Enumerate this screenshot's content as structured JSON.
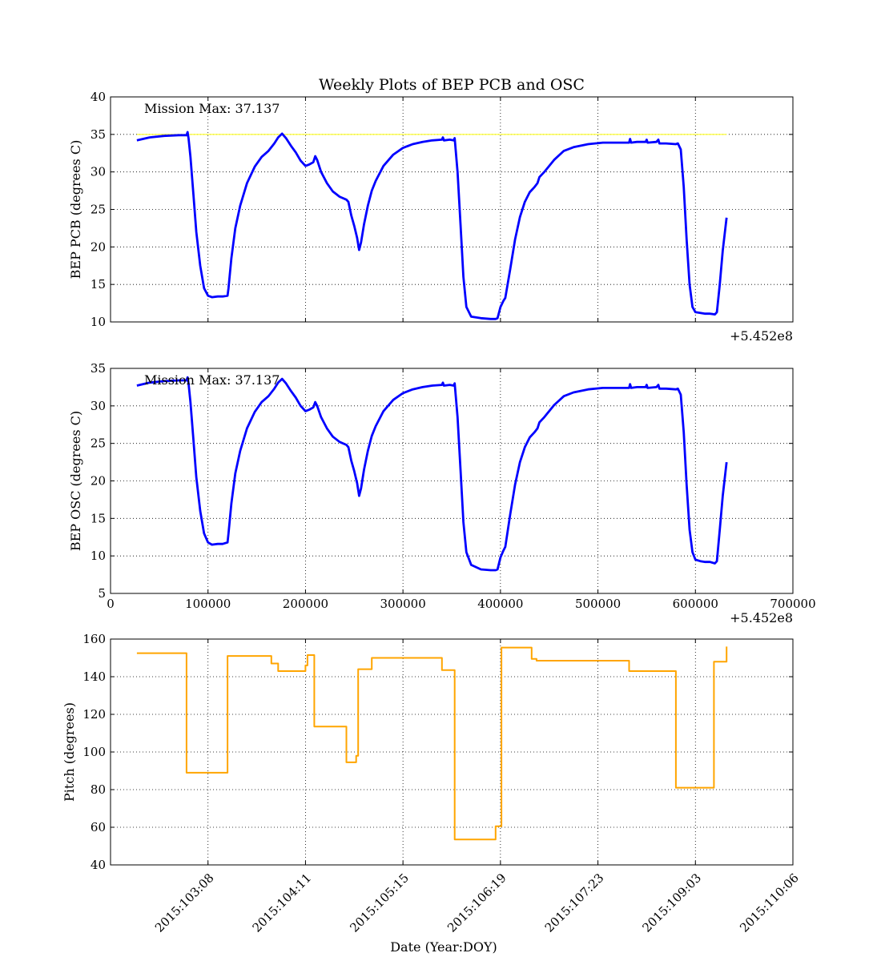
{
  "figure": {
    "title": "Weekly Plots of BEP PCB and OSC",
    "background": "#ffffff"
  },
  "chart_data": [
    {
      "id": "pcb",
      "type": "line",
      "title": "Weekly Plots of BEP PCB and OSC",
      "ylabel": "BEP PCB (degrees C)",
      "xlabel": "",
      "xlim": [
        0,
        700000
      ],
      "ylim": [
        10,
        40
      ],
      "x_offset_label": "+5.452e8",
      "grid": true,
      "yticks": [
        10,
        15,
        20,
        25,
        30,
        35,
        40
      ],
      "xticks": [
        0,
        100000,
        200000,
        300000,
        400000,
        500000,
        600000,
        700000
      ],
      "xtick_labels_shown": false,
      "annotation": "Mission Max: 37.137",
      "reference_line": {
        "y": 35,
        "x": [
          27000,
          632000
        ],
        "color": "#ffff00"
      },
      "series": [
        {
          "color": "#0000ff",
          "x": [
            27000,
            40000,
            55000,
            70000,
            78000,
            79000,
            80000,
            82000,
            85000,
            88000,
            92000,
            96000,
            100000,
            104000,
            110000,
            115000,
            120000,
            121000,
            124000,
            128000,
            133000,
            140000,
            148000,
            155000,
            162000,
            168000,
            172000,
            176000,
            180000,
            185000,
            190000,
            195000,
            200000,
            204000,
            208000,
            210000,
            212000,
            216000,
            222000,
            228000,
            235000,
            242000,
            244000,
            247000,
            250000,
            253000,
            255000,
            257000,
            260000,
            264000,
            268000,
            272000,
            280000,
            290000,
            300000,
            310000,
            320000,
            330000,
            340000,
            341000,
            342000,
            348000,
            352000,
            353000,
            356000,
            359000,
            362000,
            365000,
            370000,
            380000,
            390000,
            395000,
            397000,
            400000,
            403000,
            405000,
            410000,
            415000,
            420000,
            425000,
            430000,
            435000,
            438000,
            440000,
            445000,
            455000,
            465000,
            475000,
            490000,
            505000,
            520000,
            532000,
            533000,
            534000,
            540000,
            549000,
            550000,
            551000,
            560000,
            562000,
            563000,
            570000,
            580000,
            582000,
            585000,
            588000,
            591000,
            594000,
            597000,
            600000,
            605000,
            610000,
            615000,
            620000,
            622000,
            625000,
            628000,
            632000
          ],
          "y": [
            34.2,
            34.6,
            34.8,
            34.9,
            34.9,
            35.3,
            34.5,
            32.0,
            27.0,
            22.0,
            17.5,
            14.5,
            13.5,
            13.3,
            13.4,
            13.4,
            13.5,
            14.5,
            18.5,
            22.5,
            25.5,
            28.5,
            30.7,
            32.0,
            32.8,
            33.8,
            34.6,
            35.1,
            34.5,
            33.5,
            32.6,
            31.5,
            30.8,
            31.0,
            31.3,
            32.1,
            31.6,
            30.0,
            28.5,
            27.4,
            26.7,
            26.3,
            26.0,
            24.2,
            22.8,
            21.2,
            19.6,
            20.6,
            23.0,
            25.5,
            27.5,
            28.8,
            30.8,
            32.3,
            33.2,
            33.7,
            34.0,
            34.2,
            34.3,
            34.6,
            34.2,
            34.3,
            34.2,
            34.5,
            30.0,
            23.0,
            16.0,
            12.0,
            10.7,
            10.5,
            10.4,
            10.4,
            10.5,
            12.0,
            12.8,
            13.2,
            17.0,
            21.0,
            24.0,
            26.0,
            27.3,
            28.0,
            28.5,
            29.3,
            30.0,
            31.6,
            32.8,
            33.3,
            33.7,
            33.9,
            33.9,
            33.9,
            34.4,
            33.9,
            34.0,
            34.0,
            34.3,
            33.9,
            34.0,
            34.3,
            33.8,
            33.8,
            33.7,
            33.8,
            33.0,
            28.0,
            21.0,
            15.0,
            12.0,
            11.3,
            11.2,
            11.1,
            11.1,
            11.0,
            11.3,
            15.0,
            19.5,
            23.9
          ]
        }
      ]
    },
    {
      "id": "osc",
      "type": "line",
      "ylabel": "BEP OSC (degrees C)",
      "xlabel": "",
      "xlim": [
        0,
        700000
      ],
      "ylim": [
        5,
        35
      ],
      "x_offset_label": "+5.452e8",
      "grid": true,
      "yticks": [
        5,
        10,
        15,
        20,
        25,
        30,
        35
      ],
      "xticks": [
        0,
        100000,
        200000,
        300000,
        400000,
        500000,
        600000,
        700000
      ],
      "xtick_labels": [
        "0",
        "100000",
        "200000",
        "300000",
        "400000",
        "500000",
        "600000",
        "700000"
      ],
      "annotation": "Mission Max: 37.137",
      "series": [
        {
          "color": "#0000ff",
          "x": [
            27000,
            40000,
            55000,
            70000,
            78000,
            79000,
            80000,
            82000,
            85000,
            88000,
            92000,
            96000,
            100000,
            104000,
            110000,
            115000,
            120000,
            121000,
            124000,
            128000,
            133000,
            140000,
            148000,
            155000,
            162000,
            168000,
            172000,
            176000,
            180000,
            185000,
            190000,
            195000,
            200000,
            204000,
            208000,
            210000,
            212000,
            216000,
            222000,
            228000,
            235000,
            242000,
            244000,
            247000,
            250000,
            253000,
            255000,
            257000,
            260000,
            264000,
            268000,
            272000,
            280000,
            290000,
            300000,
            310000,
            320000,
            330000,
            340000,
            341000,
            342000,
            348000,
            352000,
            353000,
            356000,
            359000,
            362000,
            365000,
            370000,
            380000,
            390000,
            395000,
            397000,
            400000,
            403000,
            405000,
            410000,
            415000,
            420000,
            425000,
            430000,
            435000,
            438000,
            440000,
            445000,
            455000,
            465000,
            475000,
            490000,
            505000,
            520000,
            532000,
            533000,
            534000,
            540000,
            549000,
            550000,
            551000,
            560000,
            562000,
            563000,
            570000,
            580000,
            582000,
            585000,
            588000,
            591000,
            594000,
            597000,
            600000,
            605000,
            610000,
            615000,
            620000,
            622000,
            625000,
            628000,
            632000
          ],
          "y": [
            32.7,
            33.1,
            33.3,
            33.4,
            33.4,
            33.8,
            33.0,
            30.5,
            25.5,
            20.5,
            16.0,
            13.0,
            11.8,
            11.5,
            11.6,
            11.6,
            11.8,
            13.0,
            17.0,
            21.0,
            24.0,
            27.0,
            29.2,
            30.5,
            31.3,
            32.3,
            33.1,
            33.6,
            33.0,
            32.0,
            31.1,
            30.0,
            29.3,
            29.5,
            29.8,
            30.5,
            30.0,
            28.5,
            27.0,
            25.9,
            25.2,
            24.8,
            24.5,
            22.7,
            21.3,
            19.7,
            18.0,
            19.0,
            21.5,
            24.0,
            26.0,
            27.3,
            29.3,
            30.8,
            31.7,
            32.2,
            32.5,
            32.7,
            32.8,
            33.1,
            32.7,
            32.8,
            32.7,
            33.0,
            28.5,
            21.5,
            14.5,
            10.5,
            8.8,
            8.2,
            8.1,
            8.1,
            8.2,
            9.8,
            10.7,
            11.2,
            15.5,
            19.5,
            22.5,
            24.5,
            25.8,
            26.5,
            27.0,
            27.8,
            28.5,
            30.1,
            31.3,
            31.8,
            32.2,
            32.4,
            32.4,
            32.4,
            32.9,
            32.4,
            32.5,
            32.5,
            32.8,
            32.4,
            32.5,
            32.8,
            32.3,
            32.3,
            32.2,
            32.3,
            31.5,
            26.5,
            19.5,
            13.5,
            10.5,
            9.5,
            9.3,
            9.2,
            9.2,
            9.0,
            9.3,
            13.5,
            18.0,
            22.5
          ]
        }
      ]
    },
    {
      "id": "pitch",
      "type": "line",
      "ylabel": "Pitch (degrees)",
      "xlabel": "Date (Year:DOY)",
      "xlim": [
        0,
        700000
      ],
      "ylim": [
        40,
        160
      ],
      "grid": true,
      "yticks": [
        40,
        60,
        80,
        100,
        120,
        140,
        160
      ],
      "xticks": [
        100000,
        200000,
        300000,
        400000,
        500000,
        600000,
        700000
      ],
      "xtick_labels": [
        "2015:103:08",
        "2015:104:11",
        "2015:105:15",
        "2015:106:19",
        "2015:107:23",
        "2015:109:03",
        "2015:110:06"
      ],
      "series": [
        {
          "color": "#ffa500",
          "x": [
            27000,
            78000,
            78000,
            120000,
            120000,
            165000,
            165000,
            172000,
            172000,
            200000,
            200000,
            202000,
            202000,
            209000,
            209000,
            242000,
            242000,
            252000,
            252000,
            254000,
            254000,
            268000,
            268000,
            340000,
            340000,
            353000,
            353000,
            395000,
            395000,
            401000,
            401000,
            432000,
            432000,
            437000,
            437000,
            532000,
            532000,
            580000,
            580000,
            619000,
            619000,
            632000,
            632000
          ],
          "y": [
            152.5,
            152.5,
            89,
            89,
            151,
            151,
            147,
            147,
            143,
            143,
            146,
            146,
            151.5,
            151.5,
            113.5,
            113.5,
            94.5,
            94.5,
            98,
            98,
            144,
            144,
            150,
            150,
            143.5,
            143.5,
            53.5,
            53.5,
            60.5,
            60.5,
            155.5,
            155.5,
            149.5,
            149.5,
            148.5,
            148.5,
            143,
            143,
            81,
            81,
            148,
            148,
            156
          ]
        }
      ]
    }
  ]
}
